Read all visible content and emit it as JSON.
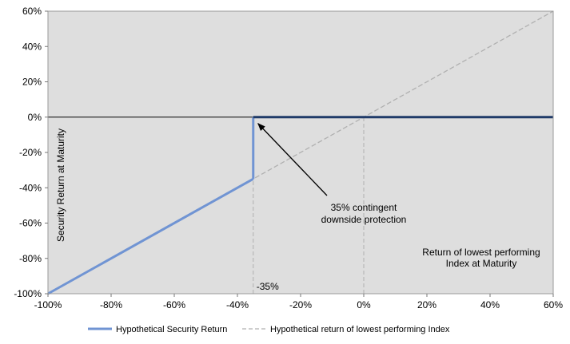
{
  "chart_data": {
    "type": "line",
    "title": "",
    "xlabel": "Return of lowest performing Index at Maturity",
    "xlabel_lines": [
      "Return of lowest performing",
      "Index at Maturity"
    ],
    "ylabel": "Security Return at Maturity",
    "xlim": [
      -100,
      60
    ],
    "ylim": [
      -100,
      60
    ],
    "x_ticks": [
      -100,
      -80,
      -60,
      -40,
      -20,
      0,
      20,
      40,
      60
    ],
    "y_ticks": [
      -100,
      -80,
      -60,
      -40,
      -20,
      0,
      20,
      40,
      60
    ],
    "x_tick_labels": [
      "-100%",
      "-80%",
      "-60%",
      "-40%",
      "-20%",
      "0%",
      "20%",
      "40%",
      "60%"
    ],
    "y_tick_labels": [
      "-100%",
      "-80%",
      "-60%",
      "-40%",
      "-20%",
      "0%",
      "20%",
      "40%",
      "60%"
    ],
    "grid": false,
    "series": [
      {
        "name": "Hypothetical Security Return",
        "segments": [
          {
            "x": [
              -100,
              -35
            ],
            "y": [
              -100,
              -35
            ],
            "color": "#7094d3"
          },
          {
            "x": [
              -35,
              -35
            ],
            "y": [
              -35,
              0
            ],
            "color": "#7094d3"
          },
          {
            "x": [
              -35,
              60
            ],
            "y": [
              0,
              0
            ],
            "color": "#1f3a68"
          }
        ]
      },
      {
        "name": "Hypothetical return of lowest performing Index",
        "style": "dashed",
        "color": "#b0b0b0",
        "x": [
          -100,
          60
        ],
        "y": [
          -100,
          60
        ]
      }
    ],
    "reference_lines": [
      {
        "axis": "x",
        "value": -35,
        "style": "dashed"
      },
      {
        "axis": "x",
        "value": 0,
        "style": "dashed"
      },
      {
        "axis": "y",
        "value": 0,
        "style": "solid"
      }
    ],
    "annotations": [
      {
        "text_lines": [
          "35% contingent",
          "downside protection"
        ],
        "arrow_to": [
          -35,
          0
        ]
      },
      {
        "text": "-35%",
        "at": [
          -35,
          -100
        ]
      }
    ],
    "legend_position": "bottom"
  },
  "colors": {
    "plot_background": "#dedede",
    "security_return_sloped": "#7094d3",
    "security_return_flat": "#1f3a68",
    "index_return": "#b0b0b0"
  }
}
